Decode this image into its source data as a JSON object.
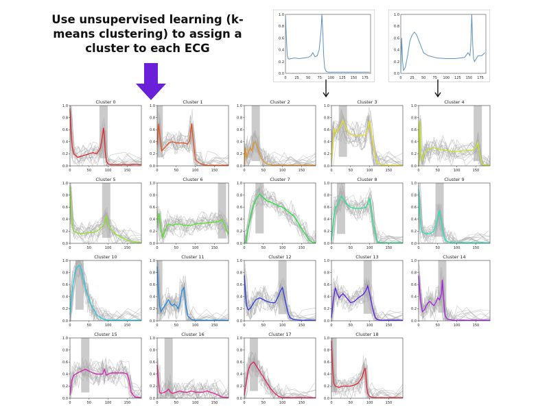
{
  "headline": "Use unsupervised learning (k-means clustering) to assign a cluster to each ECG",
  "colors": {
    "arrow": "#6a20d8",
    "gray_traces": "#a8a8a8",
    "sample_line": "#5b8fbf"
  },
  "sample_plots": [
    {
      "x_ticks": [
        0,
        25,
        50,
        75,
        100,
        125,
        150,
        175
      ],
      "y_ticks": [
        "0.0",
        "0.2",
        "0.4",
        "0.6",
        "0.8",
        "1.0"
      ],
      "xlim": [
        0,
        187
      ],
      "ylim": [
        0,
        1
      ],
      "x": [
        0,
        2,
        4,
        6,
        8,
        12,
        20,
        30,
        40,
        50,
        56,
        60,
        65,
        70,
        74,
        78,
        80,
        82,
        84,
        86,
        88,
        90,
        94,
        100,
        120,
        150,
        185
      ],
      "y": [
        1.0,
        0.6,
        0.3,
        0.25,
        0.24,
        0.25,
        0.26,
        0.25,
        0.26,
        0.27,
        0.3,
        0.35,
        0.28,
        0.3,
        0.4,
        0.7,
        1.0,
        0.7,
        0.3,
        0.1,
        0.05,
        0.03,
        0.02,
        0.02,
        0.02,
        0.02,
        0.02
      ]
    },
    {
      "x_ticks": [
        0,
        25,
        50,
        75,
        100,
        125,
        150,
        175
      ],
      "y_ticks": [
        "0.0",
        "0.2",
        "0.4",
        "0.6",
        "0.8",
        "1.0"
      ],
      "xlim": [
        0,
        187
      ],
      "ylim": [
        0,
        1
      ],
      "x": [
        0,
        2,
        4,
        6,
        10,
        15,
        20,
        25,
        30,
        35,
        40,
        50,
        60,
        80,
        100,
        120,
        140,
        148,
        152,
        154,
        156,
        158,
        160,
        162,
        166,
        170,
        178,
        185
      ],
      "y": [
        0.0,
        0.6,
        0.2,
        0.05,
        0.1,
        0.3,
        0.55,
        0.65,
        0.7,
        0.65,
        0.55,
        0.35,
        0.3,
        0.26,
        0.25,
        0.25,
        0.27,
        0.35,
        0.3,
        0.5,
        1.0,
        0.5,
        0.25,
        0.2,
        0.25,
        0.3,
        0.3,
        0.35
      ]
    }
  ],
  "chart_data": {
    "type": "line",
    "x_ticks": [
      0,
      50,
      100,
      150
    ],
    "y_ticks": [
      "0.0",
      "0.2",
      "0.4",
      "0.6",
      "0.8",
      "1.0"
    ],
    "xlim": [
      0,
      187
    ],
    "ylim": [
      0,
      1
    ],
    "clusters": [
      {
        "title": "Cluster 0",
        "color": "#e8242b",
        "x": [
          0,
          3,
          6,
          10,
          20,
          30,
          40,
          50,
          60,
          70,
          80,
          85,
          88,
          90,
          92,
          95,
          100,
          110,
          130,
          150,
          187
        ],
        "y": [
          0.95,
          0.55,
          0.3,
          0.2,
          0.14,
          0.16,
          0.18,
          0.2,
          0.22,
          0.2,
          0.3,
          0.5,
          0.63,
          0.5,
          0.25,
          0.08,
          0.03,
          0.02,
          0.02,
          0.02,
          0.02
        ]
      },
      {
        "title": "Cluster 1",
        "color": "#e84f1c",
        "x": [
          0,
          4,
          8,
          12,
          20,
          30,
          40,
          50,
          60,
          70,
          80,
          85,
          90,
          95,
          100,
          110,
          120,
          130,
          150,
          187
        ],
        "y": [
          0.35,
          0.7,
          0.45,
          0.25,
          0.3,
          0.38,
          0.4,
          0.38,
          0.38,
          0.38,
          0.36,
          0.42,
          0.7,
          0.4,
          0.1,
          0.05,
          0.02,
          0.01,
          0.01,
          0.01
        ]
      },
      {
        "title": "Cluster 2",
        "color": "#e8921c",
        "x": [
          0,
          3,
          6,
          10,
          15,
          20,
          25,
          30,
          35,
          40,
          45,
          50,
          55,
          60,
          70,
          80,
          100,
          120,
          150,
          187
        ],
        "y": [
          0.0,
          0.3,
          0.15,
          0.2,
          0.3,
          0.25,
          0.38,
          0.4,
          0.3,
          0.2,
          0.12,
          0.08,
          0.05,
          0.03,
          0.02,
          0.01,
          0.01,
          0.01,
          0.01,
          0.01
        ]
      },
      {
        "title": "Cluster 3",
        "color": "#e8e21c",
        "x": [
          0,
          4,
          8,
          12,
          20,
          30,
          40,
          50,
          60,
          70,
          80,
          90,
          95,
          100,
          105,
          110,
          115,
          120,
          130,
          150,
          187
        ],
        "y": [
          0.1,
          0.4,
          0.62,
          0.55,
          0.62,
          0.75,
          0.6,
          0.52,
          0.5,
          0.5,
          0.5,
          0.52,
          0.6,
          0.75,
          0.55,
          0.3,
          0.15,
          0.05,
          0.02,
          0.01,
          0.01
        ]
      },
      {
        "title": "Cluster 4",
        "color": "#c2e81c",
        "x": [
          0,
          3,
          6,
          10,
          15,
          20,
          25,
          30,
          40,
          50,
          60,
          70,
          80,
          90,
          100,
          120,
          140,
          150,
          155,
          160,
          165,
          170,
          180,
          187
        ],
        "y": [
          0.0,
          0.75,
          0.2,
          0.1,
          0.2,
          0.25,
          0.27,
          0.28,
          0.3,
          0.28,
          0.27,
          0.26,
          0.25,
          0.24,
          0.24,
          0.25,
          0.26,
          0.3,
          0.4,
          0.2,
          0.05,
          0.02,
          0.01,
          0.01
        ]
      },
      {
        "title": "Cluster 5",
        "color": "#8ae81c",
        "x": [
          0,
          3,
          6,
          10,
          20,
          30,
          40,
          50,
          60,
          70,
          80,
          90,
          95,
          100,
          105,
          110,
          120,
          140,
          160,
          187
        ],
        "y": [
          0.95,
          0.55,
          0.3,
          0.2,
          0.17,
          0.16,
          0.17,
          0.18,
          0.18,
          0.2,
          0.25,
          0.32,
          0.45,
          0.32,
          0.25,
          0.22,
          0.15,
          0.08,
          0.03,
          0.01
        ]
      },
      {
        "title": "Cluster 6",
        "color": "#4ee81c",
        "x": [
          0,
          5,
          10,
          15,
          20,
          25,
          30,
          40,
          50,
          60,
          70,
          80,
          90,
          100,
          110,
          120,
          130,
          140,
          150,
          160,
          170,
          180,
          187
        ],
        "y": [
          0.35,
          0.5,
          0.2,
          0.1,
          0.2,
          0.28,
          0.32,
          0.3,
          0.32,
          0.32,
          0.3,
          0.3,
          0.3,
          0.32,
          0.33,
          0.33,
          0.34,
          0.35,
          0.35,
          0.36,
          0.4,
          0.25,
          0.15
        ]
      },
      {
        "title": "Cluster 7",
        "color": "#1ce83a",
        "x": [
          0,
          5,
          10,
          20,
          30,
          40,
          50,
          60,
          70,
          80,
          90,
          100,
          110,
          120,
          130,
          140,
          150,
          160,
          170,
          180,
          187
        ],
        "y": [
          0.0,
          0.05,
          0.25,
          0.55,
          0.72,
          0.82,
          0.76,
          0.7,
          0.68,
          0.65,
          0.62,
          0.6,
          0.55,
          0.5,
          0.45,
          0.35,
          0.25,
          0.15,
          0.05,
          0.01,
          0.01
        ]
      },
      {
        "title": "Cluster 8",
        "color": "#1ce88a",
        "x": [
          0,
          5,
          10,
          15,
          20,
          25,
          30,
          40,
          50,
          60,
          70,
          80,
          90,
          95,
          100,
          105,
          110,
          115,
          120,
          130,
          150,
          187
        ],
        "y": [
          0.05,
          0.35,
          0.6,
          0.62,
          0.7,
          0.78,
          0.75,
          0.65,
          0.6,
          0.58,
          0.58,
          0.58,
          0.6,
          0.65,
          0.75,
          0.55,
          0.3,
          0.15,
          0.03,
          0.01,
          0.01,
          0.01
        ]
      },
      {
        "title": "Cluster 9",
        "color": "#1ce8c2",
        "x": [
          0,
          3,
          6,
          10,
          20,
          30,
          40,
          45,
          50,
          55,
          60,
          65,
          70,
          80,
          90,
          100,
          130,
          160,
          187
        ],
        "y": [
          0.9,
          0.5,
          0.25,
          0.18,
          0.16,
          0.16,
          0.2,
          0.3,
          0.42,
          0.55,
          0.35,
          0.15,
          0.05,
          0.02,
          0.01,
          0.01,
          0.01,
          0.01,
          0.01
        ]
      },
      {
        "title": "Cluster 10",
        "color": "#1ccde8",
        "x": [
          0,
          5,
          10,
          15,
          20,
          25,
          30,
          35,
          40,
          45,
          50,
          55,
          60,
          65,
          70,
          80,
          90,
          100,
          120,
          150,
          187
        ],
        "y": [
          0.1,
          0.45,
          0.7,
          0.85,
          0.9,
          0.92,
          0.85,
          0.7,
          0.55,
          0.45,
          0.35,
          0.28,
          0.2,
          0.15,
          0.1,
          0.05,
          0.02,
          0.01,
          0.01,
          0.01,
          0.01
        ]
      },
      {
        "title": "Cluster 11",
        "color": "#1c8ae8",
        "x": [
          0,
          3,
          6,
          10,
          15,
          20,
          25,
          30,
          35,
          40,
          45,
          50,
          55,
          60,
          65,
          70,
          75,
          80,
          90,
          100,
          130,
          160,
          187
        ],
        "y": [
          0.9,
          0.55,
          0.25,
          0.15,
          0.2,
          0.25,
          0.3,
          0.35,
          0.28,
          0.25,
          0.28,
          0.25,
          0.2,
          0.3,
          0.5,
          0.55,
          0.25,
          0.08,
          0.02,
          0.01,
          0.01,
          0.01,
          0.01
        ]
      },
      {
        "title": "Cluster 12",
        "color": "#2a3ae8",
        "x": [
          0,
          3,
          6,
          10,
          15,
          20,
          25,
          30,
          40,
          50,
          60,
          70,
          80,
          85,
          90,
          95,
          100,
          105,
          110,
          115,
          120,
          130,
          150,
          187
        ],
        "y": [
          0.75,
          0.45,
          0.25,
          0.18,
          0.2,
          0.25,
          0.3,
          0.35,
          0.38,
          0.35,
          0.32,
          0.3,
          0.3,
          0.35,
          0.42,
          0.5,
          0.55,
          0.4,
          0.25,
          0.12,
          0.05,
          0.02,
          0.01,
          0.01
        ]
      },
      {
        "title": "Cluster 13",
        "color": "#5a1ce8",
        "x": [
          0,
          5,
          10,
          15,
          20,
          25,
          30,
          40,
          50,
          60,
          70,
          80,
          85,
          90,
          95,
          100,
          105,
          110,
          115,
          120,
          130,
          150,
          187
        ],
        "y": [
          0.05,
          0.35,
          0.55,
          0.45,
          0.38,
          0.42,
          0.45,
          0.38,
          0.3,
          0.32,
          0.38,
          0.42,
          0.45,
          0.5,
          0.58,
          0.45,
          0.3,
          0.15,
          0.05,
          0.02,
          0.01,
          0.01,
          0.01
        ]
      },
      {
        "title": "Cluster 14",
        "color": "#a81ce8",
        "x": [
          0,
          3,
          6,
          10,
          15,
          20,
          25,
          30,
          35,
          40,
          45,
          50,
          55,
          60,
          62,
          65,
          68,
          70,
          75,
          80,
          90,
          100,
          130,
          160,
          187
        ],
        "y": [
          0.75,
          0.5,
          0.3,
          0.15,
          0.18,
          0.25,
          0.3,
          0.32,
          0.28,
          0.25,
          0.3,
          0.38,
          0.35,
          0.45,
          0.68,
          0.4,
          0.15,
          0.08,
          0.03,
          0.02,
          0.01,
          0.01,
          0.01,
          0.01,
          0.01
        ]
      },
      {
        "title": "Cluster 15",
        "color": "#d81cb8",
        "x": [
          0,
          5,
          10,
          20,
          30,
          40,
          50,
          60,
          70,
          80,
          85,
          90,
          95,
          100,
          110,
          120,
          130,
          140,
          150,
          155,
          160,
          170,
          187
        ],
        "y": [
          0.05,
          0.3,
          0.38,
          0.42,
          0.45,
          0.48,
          0.45,
          0.42,
          0.4,
          0.4,
          0.4,
          0.48,
          0.38,
          0.4,
          0.42,
          0.42,
          0.42,
          0.42,
          0.4,
          0.3,
          0.1,
          0.02,
          0.01
        ]
      },
      {
        "title": "Cluster 16",
        "color": "#e81c8e",
        "x": [
          0,
          3,
          6,
          10,
          20,
          25,
          30,
          35,
          40,
          50,
          60,
          70,
          80,
          90,
          100,
          110,
          120,
          130,
          140,
          150,
          160,
          170,
          187
        ],
        "y": [
          0.55,
          0.3,
          0.1,
          0.08,
          0.1,
          0.12,
          0.15,
          0.1,
          0.08,
          0.1,
          0.12,
          0.1,
          0.1,
          0.12,
          0.1,
          0.1,
          0.1,
          0.12,
          0.1,
          0.08,
          0.05,
          0.02,
          0.01
        ]
      },
      {
        "title": "Cluster 17",
        "color": "#e81c5a",
        "x": [
          0,
          5,
          10,
          15,
          20,
          25,
          30,
          35,
          40,
          45,
          50,
          55,
          60,
          65,
          70,
          80,
          90,
          100,
          110,
          130,
          160,
          187
        ],
        "y": [
          0.05,
          0.25,
          0.45,
          0.55,
          0.58,
          0.6,
          0.55,
          0.5,
          0.45,
          0.4,
          0.35,
          0.3,
          0.25,
          0.2,
          0.15,
          0.08,
          0.03,
          0.01,
          0.01,
          0.01,
          0.01,
          0.01
        ]
      },
      {
        "title": "Cluster 18",
        "color": "#e8243a",
        "x": [
          0,
          3,
          6,
          10,
          20,
          30,
          40,
          50,
          60,
          70,
          75,
          80,
          85,
          88,
          90,
          92,
          95,
          100,
          110,
          130,
          160,
          187
        ],
        "y": [
          0.95,
          0.5,
          0.25,
          0.2,
          0.18,
          0.2,
          0.2,
          0.2,
          0.22,
          0.25,
          0.3,
          0.35,
          0.45,
          0.5,
          0.4,
          0.2,
          0.08,
          0.03,
          0.01,
          0.01,
          0.01,
          0.01
        ]
      }
    ]
  }
}
